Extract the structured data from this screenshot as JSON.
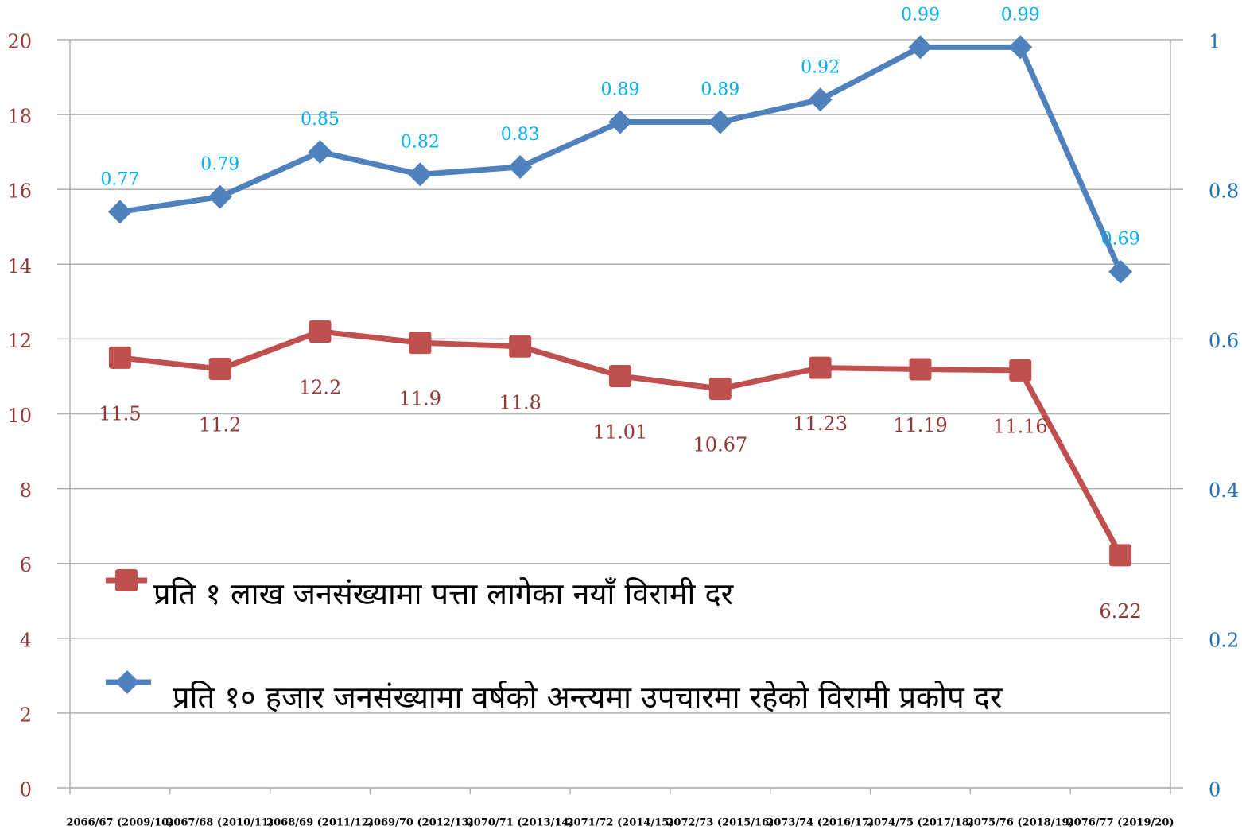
{
  "chart_data": {
    "type": "line",
    "categories": [
      "2066/67 (2009/10)",
      "2067/68 (2010/11)",
      "2068/69 (2011/12)",
      "2069/70 (2012/13)",
      "2070/71 (2013/14)",
      "2071/72 (2014/15)",
      "2072/73 (2015/16)",
      "2073/74 (2016/17)",
      "2074/75 (2017/18)",
      "2075/76 (2018/19)",
      "2076/77 (2019/20)"
    ],
    "series": [
      {
        "name": "प्रति १ लाख जनसंख्यामा पत्ता लागेका नयाँ विरामी दर",
        "color": "#c0504d",
        "values": [
          11.5,
          11.2,
          12.2,
          11.9,
          11.8,
          11.01,
          10.67,
          11.23,
          11.19,
          11.16,
          6.22
        ]
      },
      {
        "name": "प्रति १० हजार जनसंख्यामा वर्षको अन्त्यमा उपचारमा रहेको विरामी प्रकोप दर",
        "color": "#4f81bd",
        "axis": "y2",
        "values": [
          0.77,
          0.79,
          0.85,
          0.82,
          0.83,
          0.89,
          0.89,
          0.92,
          0.99,
          0.99,
          0.69
        ]
      }
    ],
    "ylim": [
      0,
      20
    ],
    "yticks": [
      0,
      2,
      4,
      6,
      8,
      10,
      12,
      14,
      16,
      18,
      20
    ],
    "y2lim": [
      0,
      1
    ],
    "y2ticks": [
      0,
      0.2,
      0.4,
      0.6,
      0.8,
      1
    ],
    "grid": true
  }
}
